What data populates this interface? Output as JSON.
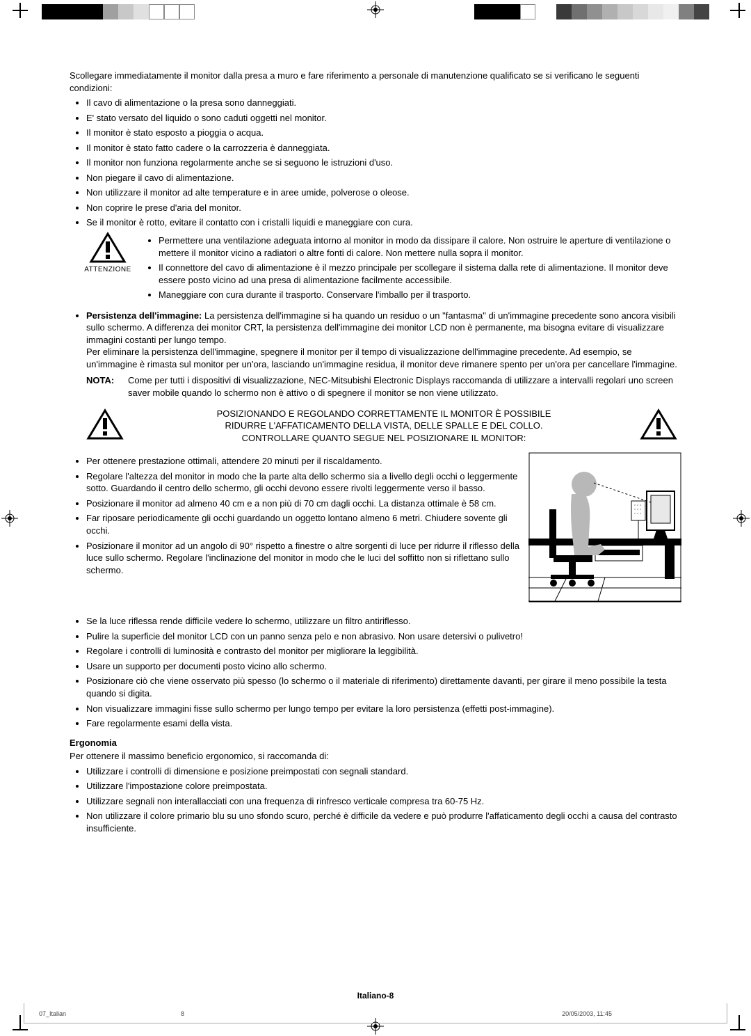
{
  "intro": "Scollegare immediatamente il monitor dalla presa a muro e fare riferimento a personale di manutenzione qualificato se si verificano le seguenti condizioni:",
  "bullets1": [
    "Il cavo di alimentazione o la presa sono danneggiati.",
    "E' stato versato del liquido o sono caduti oggetti nel monitor.",
    "Il monitor è stato esposto a pioggia o acqua.",
    "Il monitor è stato fatto cadere o la carrozzeria è danneggiata.",
    "Il monitor non funziona regolarmente anche se si seguono le istruzioni d'uso.",
    "Non piegare il cavo di alimentazione.",
    "Non utilizzare il monitor ad alte temperature e in aree umide, polverose o oleose.",
    "Non coprire le prese d'aria del monitor.",
    "Se il monitor è rotto, evitare il contatto con i cristalli liquidi e maneggiare con cura."
  ],
  "attenzione_label": "ATTENZIONE",
  "attenzione_bullets": [
    "Permettere una ventilazione adeguata intorno al monitor in modo da dissipare il calore. Non ostruire le aperture di ventilazione o mettere il monitor vicino a radiatori o altre fonti di calore. Non mettere nulla sopra il monitor.",
    "Il connettore del cavo di alimentazione è il mezzo principale per scollegare il sistema dalla rete di alimentazione. Il monitor deve essere posto vicino ad una presa di alimentazione facilmente accessibile.",
    "Maneggiare con cura durante il trasporto. Conservare l'imballo per il trasporto."
  ],
  "persistenza_label": "Persistenza dell'immagine:",
  "persistenza_text": " La persistenza dell'immagine si ha quando un residuo o un \"fantasma\" di un'immagine precedente sono ancora visibili sullo schermo. A differenza dei monitor CRT, la persistenza dell'immagine dei monitor LCD non è permanente, ma bisogna evitare di visualizzare immagini costanti per lungo tempo.",
  "persistenza_text2": "Per eliminare la persistenza dell'immagine, spegnere il monitor per il tempo di visualizzazione dell'immagine precedente. Ad esempio, se un'immagine è rimasta sul monitor per un'ora, lasciando un'immagine residua, il monitor deve rimanere spento per un'ora per cancellare l'immagine.",
  "nota_label": "NOTA:",
  "nota_text": "Come per tutti i dispositivi di visualizzazione, NEC-Mitsubishi Electronic Displays raccomanda di utilizzare a intervalli regolari uno screen saver mobile quando lo schermo non è attivo o di spegnere il monitor se non viene utilizzato.",
  "advice_line1": "POSIZIONANDO E REGOLANDO CORRETTAMENTE IL MONITOR È POSSIBILE",
  "advice_line2": "RIDURRE L'AFFATICAMENTO DELLA VISTA, DELLE SPALLE E DEL COLLO.",
  "advice_line3": "CONTROLLARE QUANTO SEGUE NEL POSIZIONARE IL MONITOR:",
  "bullets2a": [
    "Per ottenere prestazione ottimali, attendere 20 minuti per il riscaldamento.",
    "Regolare l'altezza del monitor in modo che la parte alta dello schermo sia a livello degli occhi o leggermente sotto. Guardando il centro dello schermo, gli occhi devono essere rivolti leggermente verso il basso.",
    "Posizionare il monitor ad almeno 40 cm e a non più di 70 cm dagli occhi. La distanza ottimale è 58 cm.",
    "Far riposare periodicamente gli occhi guardando un oggetto lontano almeno 6 metri. Chiudere sovente gli occhi.",
    "Posizionare il monitor ad un angolo di 90° rispetto a finestre o altre sorgenti di luce per ridurre il riflesso della luce sullo schermo. Regolare l'inclinazione del monitor in modo che le luci del soffitto non si riflettano sullo schermo."
  ],
  "bullets2b": [
    "Se la luce riflessa rende difficile vedere lo schermo, utilizzare un filtro antiriflesso.",
    "Pulire la superficie del monitor LCD con un panno senza pelo e non abrasivo. Non usare detersivi o pulivetro!",
    "Regolare i controlli di luminosità e contrasto del monitor per migliorare la leggibilità.",
    "Usare un supporto per documenti posto vicino allo schermo.",
    "Posizionare ciò che viene osservato più spesso (lo schermo o il materiale di riferimento) direttamente davanti, per girare il meno possibile la testa quando si digita.",
    "Non visualizzare immagini fisse sullo schermo per lungo tempo per evitare la loro persistenza (effetti post-immagine).",
    "Fare regolarmente esami della vista."
  ],
  "ergo_heading": "Ergonomia",
  "ergo_intro": "Per ottenere il massimo beneficio ergonomico, si raccomanda di:",
  "ergo_bullets": [
    "Utilizzare i controlli di dimensione e posizione preimpostati con segnali standard.",
    "Utilizzare l'impostazione colore preimpostata.",
    "Utilizzare segnali non interallacciati con una frequenza di rinfresco verticale compresa tra 60-75 Hz.",
    "Non utilizzare il colore primario blu su uno sfondo scuro, perché è difficile da vedere e può produrre l'affaticamento degli occhi a causa del contrasto insufficiente."
  ],
  "page_footer": "Italiano-8",
  "trim_left": "07_Italian",
  "trim_mid": "8",
  "trim_right": "20/05/2003, 11:45",
  "colorbar_left": [
    "#000000",
    "#000000",
    "#000000",
    "#000000",
    "#a0a0a0",
    "#c8c8c8",
    "#e0e0e0",
    "#ffffff",
    "#ffffff",
    "#ffffff"
  ],
  "colorbar_right1": [
    "#000000",
    "#000000",
    "#000000",
    "#ffffff"
  ],
  "colorbar_right2": [
    "#3a3a3a",
    "#707070",
    "#909090",
    "#b0b0b0",
    "#c8c8c8",
    "#d8d8d8",
    "#e8e8e8",
    "#f0f0f0",
    "#808080",
    "#444444"
  ]
}
